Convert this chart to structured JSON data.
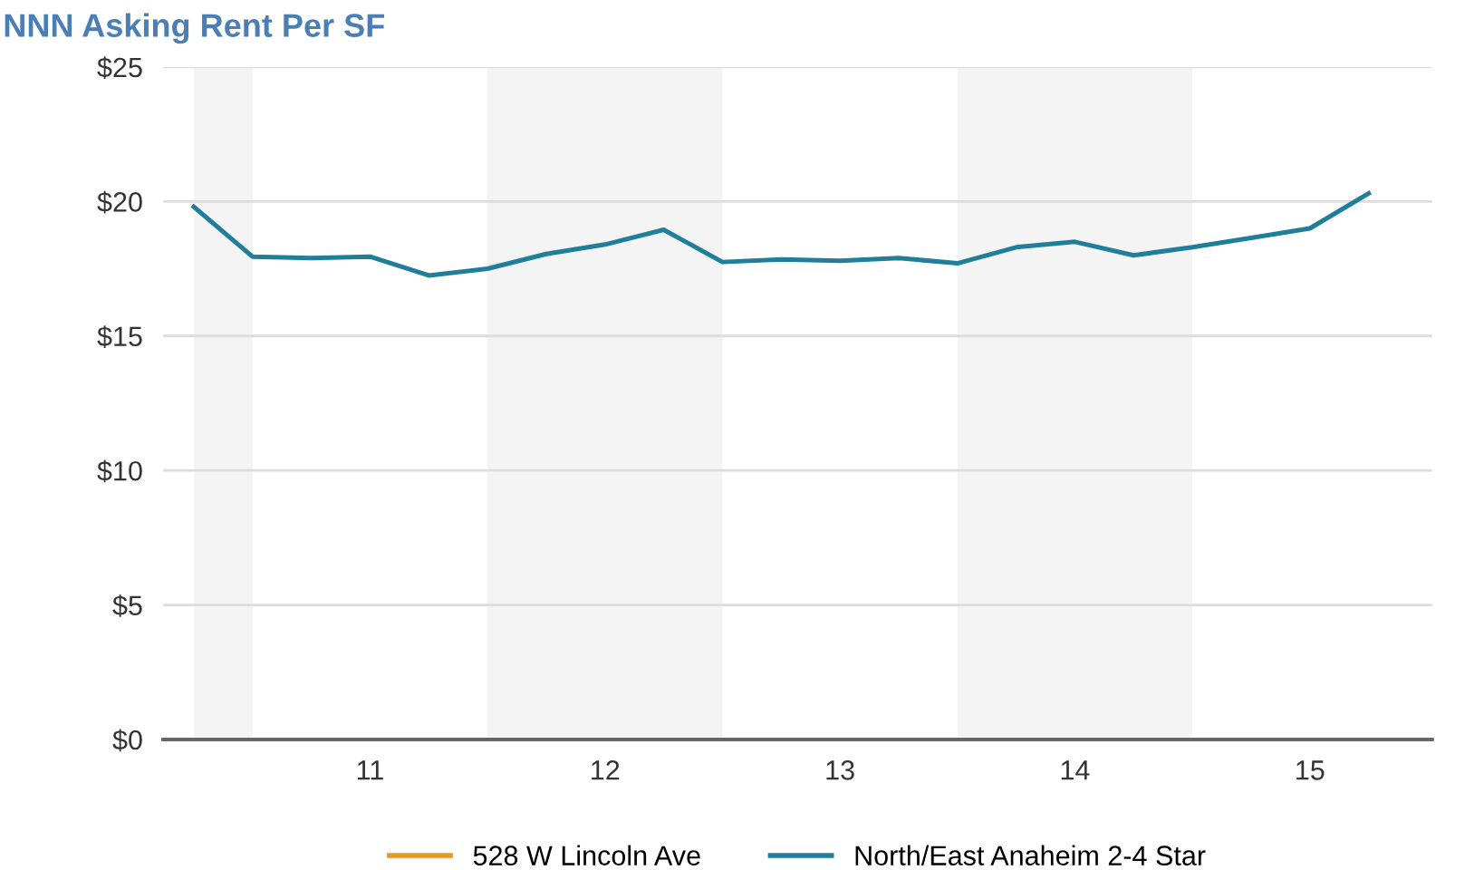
{
  "chart_data": {
    "type": "line",
    "title": "NNN Asking Rent Per SF",
    "x": [
      10.25,
      10.5,
      10.75,
      11,
      11.25,
      11.5,
      11.75,
      12,
      12.25,
      12.5,
      12.75,
      13,
      13.25,
      13.5,
      13.75,
      14,
      14.25,
      14.5,
      14.75,
      15,
      15.25
    ],
    "series": [
      {
        "name": "528 W Lincoln Ave",
        "color": "#f0961e",
        "values": [
          null,
          null,
          null,
          null,
          null,
          null,
          null,
          null,
          null,
          null,
          null,
          null,
          null,
          null,
          null,
          null,
          null,
          null,
          null,
          null,
          null
        ]
      },
      {
        "name": "North/East Anaheim 2-4 Star",
        "color": "#1f7f9a",
        "values": [
          19.8,
          17.95,
          17.9,
          17.95,
          17.25,
          17.5,
          18.05,
          18.4,
          18.95,
          17.75,
          17.85,
          17.8,
          17.9,
          17.7,
          18.3,
          18.5,
          18.0,
          18.3,
          18.65,
          19.0,
          20.3
        ]
      }
    ],
    "xlim": [
      10.12,
      15.52
    ],
    "xticks": [
      11,
      12,
      13,
      14,
      15
    ],
    "ylim": [
      0,
      25
    ],
    "yticks": [
      {
        "value": 0,
        "label": "$0"
      },
      {
        "value": 5,
        "label": "$5"
      },
      {
        "value": 10,
        "label": "$10"
      },
      {
        "value": 15,
        "label": "$15"
      },
      {
        "value": 20,
        "label": "$20"
      },
      {
        "value": 25,
        "label": "$25"
      }
    ],
    "bands": [
      {
        "axis": "x",
        "from": 10.25,
        "to": 10.5,
        "color": "#f4f4f4"
      },
      {
        "axis": "x",
        "from": 11.5,
        "to": 12.5,
        "color": "#f4f4f4"
      },
      {
        "axis": "x",
        "from": 13.5,
        "to": 14.5,
        "color": "#f4f4f4"
      }
    ],
    "grid": "y",
    "legend": "bottom",
    "marker": "none",
    "line_style": "solid"
  }
}
